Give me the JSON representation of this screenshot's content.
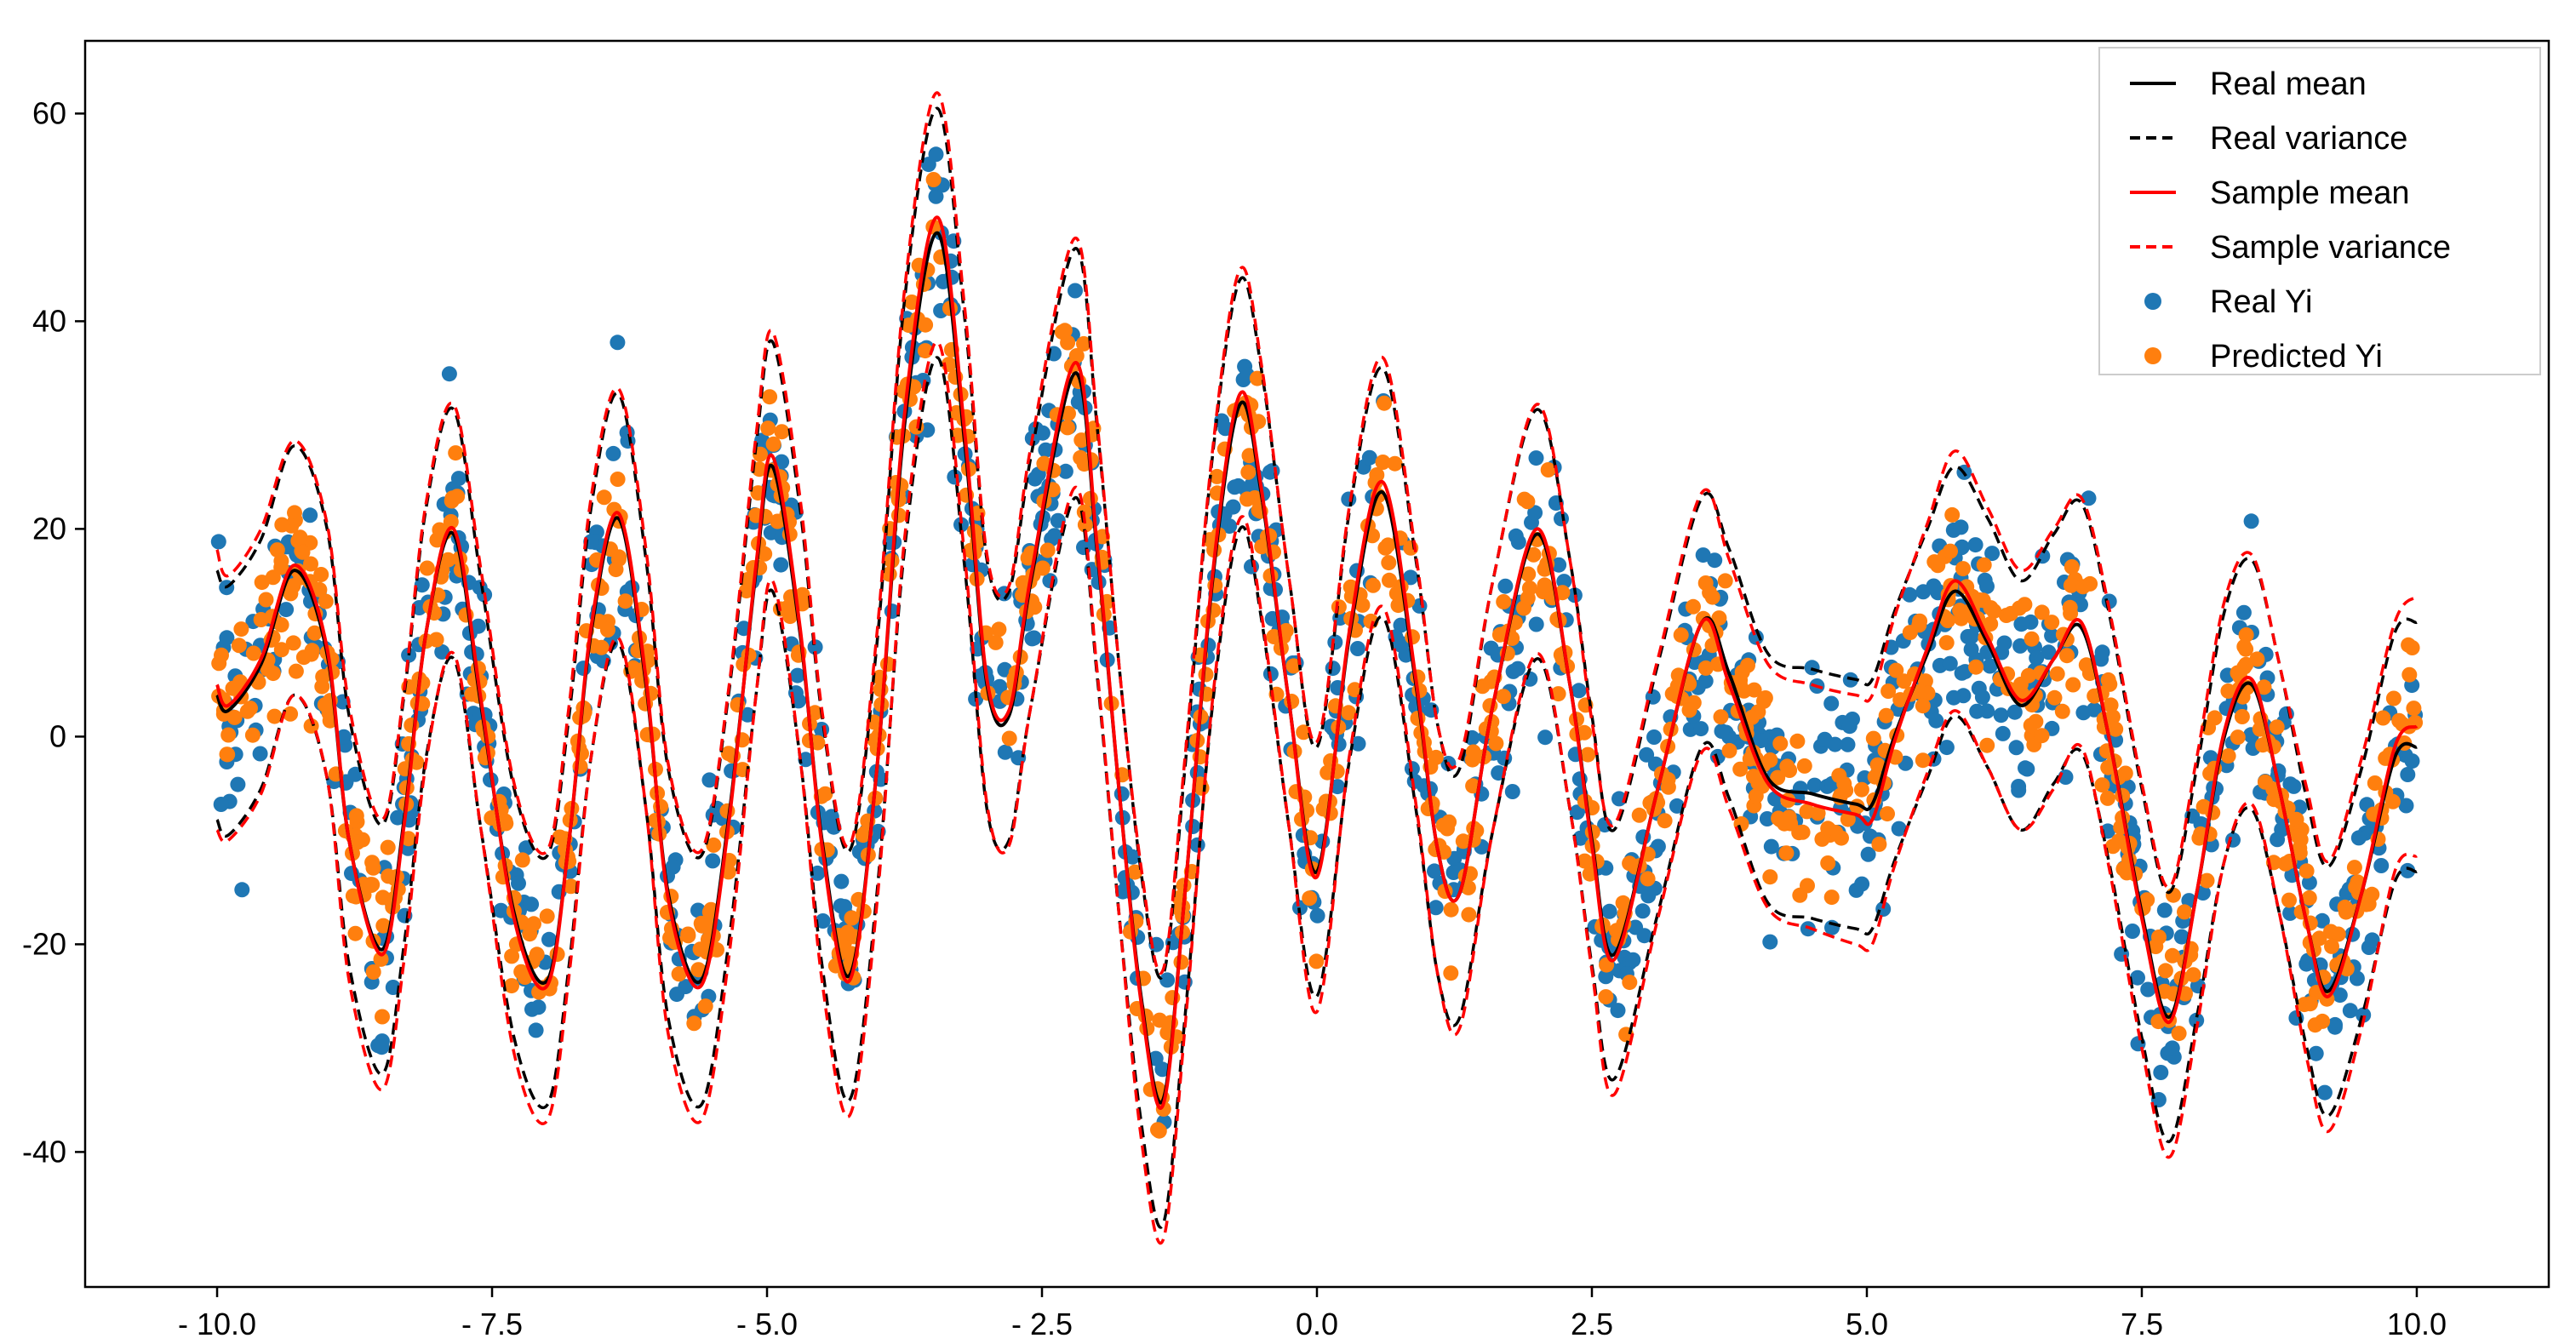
{
  "chart_data": {
    "type": "scatter",
    "title": "",
    "xlabel": "",
    "ylabel": "",
    "xlim": [
      -11.2,
      11.2
    ],
    "ylim": [
      -53,
      67
    ],
    "x_ticks": [
      -10,
      -7.5,
      -5,
      -2.5,
      0,
      2.5,
      5,
      7.5,
      10
    ],
    "x_tick_labels": [
      "- 10.0",
      "- 7.5",
      "- 5.0",
      "- 2.5",
      "0.0",
      "2.5",
      "5.0",
      "7.5",
      "10.0"
    ],
    "y_ticks": [
      -40,
      -20,
      0,
      20,
      40,
      60
    ],
    "y_tick_labels": [
      "-40",
      "-20",
      "0",
      "20",
      "40",
      "60"
    ],
    "grid": false,
    "legend_position": "top-right",
    "x_range": [
      -10,
      10
    ],
    "series": [
      {
        "name": "Real mean",
        "kind": "line",
        "style": "solid",
        "color": "#000000",
        "x": [
          -10,
          -9.9,
          -9.6,
          -9.3,
          -9.0,
          -8.8,
          -8.5,
          -8.3,
          -8.1,
          -7.85,
          -7.6,
          -7.3,
          -7.0,
          -6.8,
          -6.6,
          -6.35,
          -6.1,
          -5.9,
          -5.6,
          -5.35,
          -5.1,
          -4.95,
          -4.7,
          -4.5,
          -4.25,
          -4.0,
          -3.75,
          -3.45,
          -3.2,
          -3.0,
          -2.8,
          -2.6,
          -2.2,
          -2.0,
          -1.8,
          -1.6,
          -1.4,
          -1.2,
          -0.95,
          -0.7,
          -0.5,
          -0.25,
          0.0,
          0.3,
          0.6,
          0.9,
          1.1,
          1.3,
          1.6,
          2.0,
          2.3,
          2.5,
          2.7,
          3.1,
          3.5,
          3.75,
          4.1,
          4.5,
          4.9,
          5.05,
          5.25,
          5.55,
          5.8,
          6.1,
          6.4,
          6.7,
          6.95,
          7.2,
          7.5,
          7.75,
          8.0,
          8.25,
          8.5,
          8.75,
          9.0,
          9.2,
          9.5,
          9.8,
          10.0
        ],
        "y": [
          4.0,
          2.5,
          7.0,
          16.0,
          8.0,
          -10.0,
          -20.5,
          -8.0,
          10.0,
          19.5,
          3.0,
          -17.0,
          -23.5,
          -10.0,
          10.0,
          21.0,
          5.0,
          -15.0,
          -23.5,
          -8.0,
          16.0,
          26.0,
          10.0,
          -10.0,
          -23.0,
          -3.0,
          30.0,
          48.5,
          28.0,
          5.0,
          2.0,
          15.0,
          35.0,
          18.0,
          -5.0,
          -25.0,
          -35.0,
          -15.0,
          15.0,
          32.0,
          23.0,
          3.0,
          -13.0,
          10.0,
          23.5,
          5.0,
          -11.0,
          -15.0,
          3.0,
          19.5,
          5.0,
          -10.0,
          -21.0,
          -5.0,
          11.0,
          6.0,
          -4.0,
          -5.5,
          -6.5,
          -6.5,
          0.0,
          8.0,
          14.0,
          9.0,
          3.0,
          7.5,
          10.5,
          0.0,
          -17.0,
          -27.0,
          -15.0,
          0.0,
          5.0,
          -5.0,
          -18.0,
          -24.5,
          -15.0,
          -2.0,
          -1.0
        ]
      },
      {
        "name": "Real variance",
        "kind": "line",
        "style": "dashed",
        "color": "#000000",
        "upper": [
          16.0,
          14.5,
          19.0,
          28.0,
          20.0,
          2.0,
          -8.5,
          4.0,
          22.0,
          31.5,
          15.0,
          -5.0,
          -11.5,
          2.0,
          22.0,
          33.0,
          17.0,
          -3.0,
          -11.5,
          4.0,
          28.0,
          38.0,
          22.0,
          2.0,
          -11.0,
          9.0,
          42.0,
          60.5,
          40.0,
          17.0,
          14.0,
          27.0,
          47.0,
          30.0,
          7.0,
          -13.0,
          -23.0,
          -3.0,
          27.0,
          44.0,
          35.0,
          15.0,
          -1.0,
          22.0,
          35.5,
          17.0,
          1.0,
          -3.0,
          15.0,
          31.5,
          17.0,
          2.0,
          -9.0,
          7.0,
          23.0,
          18.0,
          8.0,
          6.5,
          5.5,
          5.5,
          12.0,
          20.0,
          26.0,
          21.0,
          15.0,
          19.5,
          22.5,
          12.0,
          -5.0,
          -15.0,
          -3.0,
          12.0,
          17.0,
          7.0,
          -6.0,
          -12.5,
          -3.0,
          10.0,
          11.0
        ],
        "lower": [
          -8.0,
          -9.5,
          -5.0,
          4.0,
          -4.0,
          -22.0,
          -32.5,
          -20.0,
          -2.0,
          7.5,
          -9.0,
          -29.0,
          -35.5,
          -22.0,
          -2.0,
          9.0,
          -7.0,
          -27.0,
          -35.5,
          -20.0,
          4.0,
          14.0,
          -2.0,
          -22.0,
          -35.0,
          -15.0,
          18.0,
          36.5,
          16.0,
          -7.0,
          -10.0,
          3.0,
          23.0,
          6.0,
          -17.0,
          -37.0,
          -47.0,
          -27.0,
          3.0,
          20.0,
          11.0,
          -9.0,
          -25.0,
          -2.0,
          11.5,
          -7.0,
          -23.0,
          -27.0,
          -9.0,
          7.5,
          -7.0,
          -22.0,
          -33.0,
          -17.0,
          -1.0,
          -6.0,
          -16.0,
          -17.5,
          -18.5,
          -18.5,
          -12.0,
          -4.0,
          2.0,
          -3.0,
          -9.0,
          -4.5,
          -1.5,
          -12.0,
          -29.0,
          -39.0,
          -27.0,
          -12.0,
          -7.0,
          -17.0,
          -30.0,
          -36.5,
          -27.0,
          -14.0,
          -13.0
        ]
      },
      {
        "name": "Sample mean",
        "kind": "line",
        "style": "solid",
        "color": "#ff0000",
        "y": [
          5.0,
          3.0,
          7.5,
          16.5,
          8.5,
          -10.0,
          -21.0,
          -8.5,
          10.0,
          20.0,
          3.5,
          -17.5,
          -24.0,
          -10.0,
          10.5,
          21.5,
          5.5,
          -15.5,
          -24.0,
          -8.5,
          16.5,
          27.0,
          10.5,
          -10.5,
          -23.5,
          -3.0,
          31.0,
          50.0,
          29.0,
          5.5,
          2.5,
          15.5,
          36.0,
          18.5,
          -5.0,
          -25.5,
          -35.5,
          -15.0,
          15.5,
          33.0,
          23.5,
          3.0,
          -13.5,
          10.5,
          24.5,
          5.5,
          -11.0,
          -15.0,
          3.0,
          20.0,
          5.0,
          -10.5,
          -21.5,
          -5.0,
          11.0,
          5.0,
          -4.5,
          -6.5,
          -7.5,
          -8.0,
          -0.5,
          8.5,
          15.0,
          9.5,
          3.5,
          7.5,
          11.0,
          0.0,
          -17.5,
          -27.5,
          -15.0,
          0.5,
          5.5,
          -5.0,
          -18.0,
          -25.0,
          -15.0,
          -1.0,
          1.0
        ]
      },
      {
        "name": "Sample variance",
        "kind": "line",
        "style": "dashed",
        "color": "#ff0000",
        "upper": [
          18.0,
          15.5,
          20.0,
          28.5,
          20.5,
          3.0,
          -8.0,
          4.5,
          22.5,
          32.0,
          16.0,
          -4.5,
          -11.0,
          3.0,
          23.0,
          33.5,
          18.0,
          -2.5,
          -11.0,
          4.5,
          29.0,
          39.0,
          23.0,
          2.5,
          -10.5,
          10.0,
          43.0,
          62.0,
          41.0,
          17.5,
          14.5,
          28.0,
          48.0,
          30.5,
          7.0,
          -12.5,
          -22.5,
          -2.0,
          27.5,
          45.0,
          35.5,
          15.0,
          -0.5,
          22.5,
          36.5,
          17.5,
          1.0,
          -2.0,
          15.0,
          32.0,
          17.0,
          1.5,
          -8.5,
          7.5,
          23.5,
          17.0,
          7.0,
          5.0,
          4.0,
          4.0,
          11.5,
          20.5,
          27.5,
          22.0,
          16.0,
          20.0,
          23.0,
          12.5,
          -4.5,
          -14.5,
          -2.0,
          13.0,
          17.5,
          7.0,
          -5.0,
          -12.0,
          -2.0,
          11.0,
          13.5
        ],
        "lower": [
          -9.0,
          -10.0,
          -5.5,
          4.0,
          -4.0,
          -23.5,
          -34.0,
          -21.5,
          -2.5,
          8.0,
          -9.0,
          -30.5,
          -37.0,
          -23.0,
          -2.0,
          9.5,
          -7.0,
          -28.5,
          -37.0,
          -21.5,
          4.0,
          15.0,
          -2.0,
          -23.5,
          -36.5,
          -16.0,
          19.0,
          38.0,
          17.0,
          -6.5,
          -10.5,
          3.0,
          24.0,
          6.5,
          -17.0,
          -38.5,
          -48.5,
          -28.0,
          3.5,
          21.0,
          11.5,
          -9.0,
          -26.5,
          -1.5,
          12.5,
          -6.5,
          -23.0,
          -28.0,
          -9.0,
          8.0,
          -7.0,
          -22.5,
          -34.5,
          -17.5,
          -1.5,
          -7.0,
          -16.5,
          -18.5,
          -20.0,
          -20.0,
          -12.5,
          -3.5,
          2.5,
          -3.0,
          -9.0,
          -5.0,
          -1.0,
          -12.5,
          -30.0,
          -40.5,
          -28.0,
          -12.0,
          -6.5,
          -17.0,
          -31.0,
          -38.0,
          -28.0,
          -13.0,
          -11.5
        ]
      },
      {
        "name": "Real Yi",
        "kind": "scatter",
        "color": "#1f77b4",
        "n_points": 1000,
        "noise_sd": 5.5
      },
      {
        "name": "Predicted Yi",
        "kind": "scatter",
        "color": "#ff7f0e",
        "n_points": 1000,
        "noise_sd": 4.0
      }
    ]
  }
}
